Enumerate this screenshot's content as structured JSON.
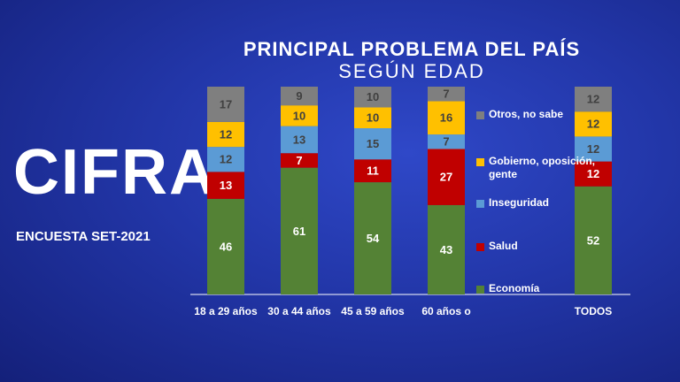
{
  "brand": {
    "logo": "CIFRA",
    "caption": "ENCUESTA SET-2021"
  },
  "chart_data": {
    "type": "stacked_bar",
    "title": "PRINCIPAL PROBLEMA DEL PAÍS",
    "subtitle": "SEGÚN EDAD",
    "categories": [
      "18 a 29 años",
      "30 a 44 años",
      "45 a 59 años",
      "60 años o",
      "TODOS"
    ],
    "ylim": [
      0,
      100
    ],
    "series": [
      {
        "name": "Economía",
        "color": "#548235",
        "label_color": "#ffffff",
        "values": [
          46,
          61,
          54,
          43,
          52
        ]
      },
      {
        "name": "Salud",
        "color": "#c00000",
        "label_color": "#ffffff",
        "values": [
          13,
          7,
          11,
          27,
          12
        ]
      },
      {
        "name": "Inseguridad",
        "color": "#5b9bd5",
        "label_color": "#404040",
        "values": [
          12,
          13,
          15,
          7,
          12
        ]
      },
      {
        "name": "Gobierno, oposición, gente",
        "color": "#ffc000",
        "label_color": "#404040",
        "values": [
          12,
          10,
          10,
          16,
          12
        ]
      },
      {
        "name": "Otros, no sabe",
        "color": "#7f7f7f",
        "label_color": "#404040",
        "values": [
          17,
          9,
          10,
          7,
          12
        ]
      }
    ]
  }
}
